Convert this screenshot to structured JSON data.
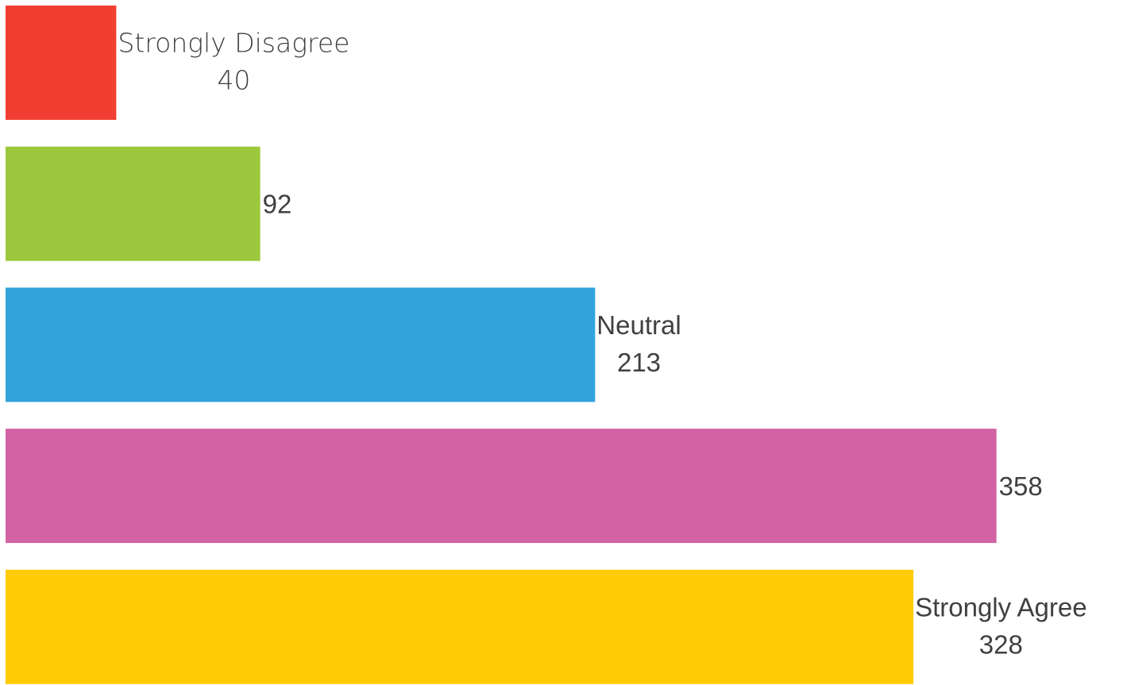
{
  "chart_data": {
    "type": "bar",
    "orientation": "horizontal",
    "categories": [
      "Strongly Disagree",
      "",
      "Neutral",
      "",
      "Strongly Agree"
    ],
    "values": [
      40,
      92,
      213,
      358,
      328
    ],
    "colors": [
      "#f23e32",
      "#9bc83c",
      "#33a3dc",
      "#d163a5",
      "#ffcb05"
    ],
    "title": "",
    "xlabel": "",
    "ylabel": "",
    "grid": false,
    "legend": "none"
  }
}
